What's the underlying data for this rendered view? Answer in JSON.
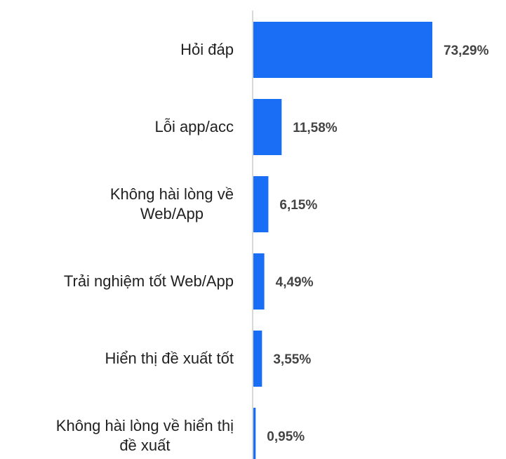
{
  "chart_data": {
    "type": "bar",
    "orientation": "horizontal",
    "categories": [
      "Hỏi đáp",
      "Lỗi app/acc",
      "Không hài lòng về\nWeb/App",
      "Trải nghiệm tốt Web/App",
      "Hiển thị đề xuất tốt",
      "Không hài lòng về hiển thị\nđề xuất"
    ],
    "values": [
      73.29,
      11.58,
      6.15,
      4.49,
      3.55,
      0.95
    ],
    "value_labels": [
      "73,29%",
      "11,58%",
      "6,15%",
      "4,49%",
      "3,55%",
      "0,95%"
    ],
    "color": "#1a6ef5"
  }
}
